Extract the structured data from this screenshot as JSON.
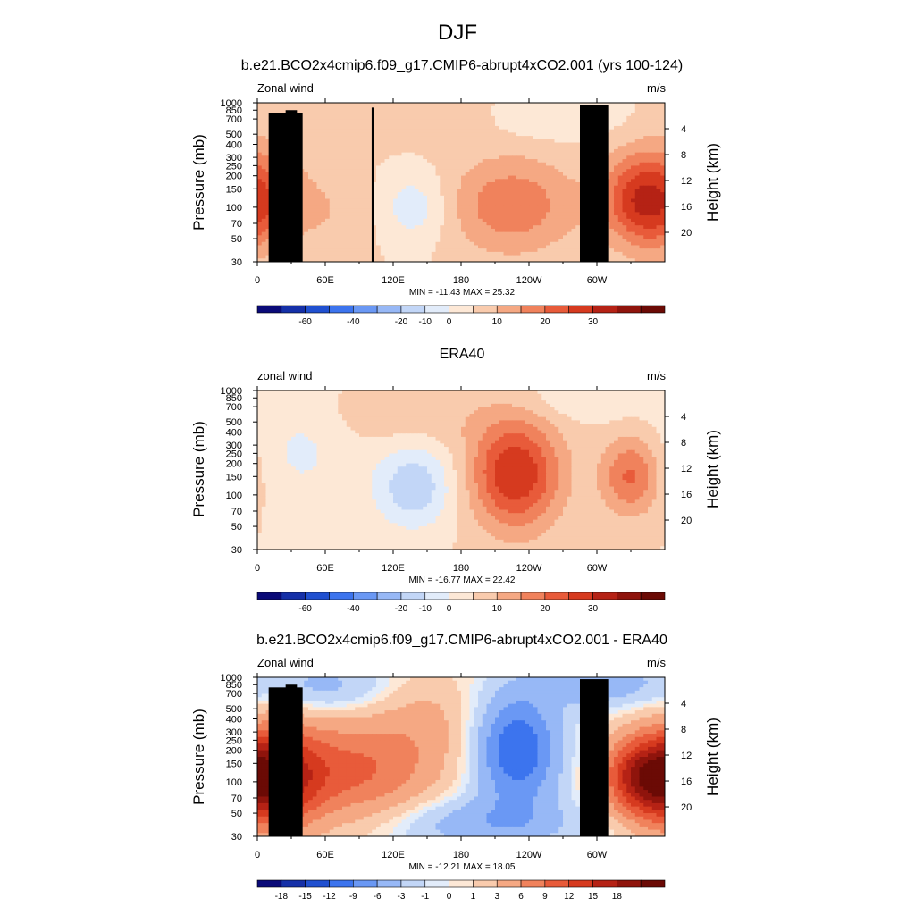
{
  "figure": {
    "title": "DJF"
  },
  "x_tick_labels": [
    "0",
    "60E",
    "120E",
    "180",
    "120W",
    "60W"
  ],
  "x_ticks_deg": [
    0,
    60,
    120,
    180,
    240,
    300
  ],
  "p_tick_labels": [
    "30",
    "50",
    "70",
    "100",
    "150",
    "200",
    "250",
    "300",
    "400",
    "500",
    "700",
    "850",
    "1000"
  ],
  "p_ticks": [
    30,
    50,
    70,
    100,
    150,
    200,
    250,
    300,
    400,
    500,
    700,
    850,
    1000
  ],
  "z_tick_labels": [
    "20",
    "16",
    "12",
    "8",
    "4"
  ],
  "z_ticks_km": [
    20,
    16,
    12,
    8,
    4
  ],
  "axis_labels": {
    "left": "Pressure (mb)",
    "right": "Height (km)"
  },
  "colorbars": {
    "abs": {
      "colors": [
        "#0a0a78",
        "#1530a8",
        "#2050d0",
        "#3c74ee",
        "#6a98f4",
        "#97b8f6",
        "#c2d6f7",
        "#e2ecfa",
        "#fde8d6",
        "#f9cbad",
        "#f5a883",
        "#f0825c",
        "#e85b3a",
        "#d63a1f",
        "#b52215",
        "#8f140c",
        "#6b0a05"
      ],
      "labels": [
        "-60",
        "-40",
        "-20",
        "-10",
        "0",
        "10",
        "20",
        "30"
      ],
      "label_after_index": [
        1,
        3,
        5,
        6,
        7,
        9,
        11,
        13
      ]
    },
    "diff": {
      "colors": [
        "#0a0a78",
        "#1530a8",
        "#2050d0",
        "#3c74ee",
        "#6a98f4",
        "#97b8f6",
        "#c2d6f7",
        "#e2ecfa",
        "#fde8d6",
        "#f9cbad",
        "#f5a883",
        "#f0825c",
        "#e85b3a",
        "#d63a1f",
        "#b52215",
        "#8f140c",
        "#6b0a05"
      ],
      "labels": [
        "-18",
        "-15",
        "-12",
        "-9",
        "-6",
        "-3",
        "-1",
        "0",
        "1",
        "3",
        "6",
        "9",
        "12",
        "15",
        "18"
      ],
      "label_after_index": [
        0,
        1,
        2,
        3,
        4,
        5,
        6,
        7,
        8,
        9,
        10,
        11,
        12,
        13,
        14
      ]
    }
  },
  "chart_data": [
    {
      "type": "heatmap",
      "title": "b.e21.BCO2x4cmip6.f09_g17.CMIP6-abrupt4xCO2.001 (yrs 100-124)",
      "left_label": "Zonal wind",
      "right_label": "m/s",
      "stats": "MIN = -11.43  MAX =  25.32",
      "xlabel": "",
      "ylabel": "Pressure (mb)",
      "y2label": "Height (km)",
      "x_range_deg": [
        0,
        360
      ],
      "p_range_mb": [
        1000,
        30
      ],
      "colorbar": "abs",
      "levels": [
        -70,
        -60,
        -50,
        -40,
        -30,
        -20,
        -15,
        -10,
        -5,
        0,
        5,
        10,
        15,
        20,
        25,
        30,
        35
      ],
      "min": -11.43,
      "max": 25.32,
      "features": [
        {
          "lon": 5,
          "p": 110,
          "amp": 13,
          "slon": 22,
          "sp": 0.9
        },
        {
          "lon": 50,
          "p": 95,
          "amp": 5,
          "slon": 40,
          "sp": 0.7
        },
        {
          "lon": 225,
          "p": 105,
          "amp": 14,
          "slon": 40,
          "sp": 0.75
        },
        {
          "lon": 335,
          "p": 120,
          "amp": 20,
          "slon": 22,
          "sp": 0.7
        },
        {
          "lon": 138,
          "p": 100,
          "amp": -9,
          "slon": 22,
          "sp": 0.55
        },
        {
          "lon": 20,
          "p": 40,
          "amp": -4,
          "slon": 18,
          "sp": 0.4
        },
        {
          "lon": 260,
          "p": 720,
          "amp": -5,
          "slon": 40,
          "sp": 0.35
        },
        {
          "lon": 130,
          "p": 750,
          "amp": 4,
          "slon": 60,
          "sp": 0.4
        }
      ],
      "topography": [
        [
          10,
          40,
          800
        ],
        [
          25,
          35,
          850
        ],
        [
          101,
          103,
          900
        ],
        [
          285,
          310,
          960
        ]
      ]
    },
    {
      "type": "heatmap",
      "title": "ERA40",
      "left_label": "zonal wind",
      "right_label": "m/s",
      "stats": "MIN = -16.77  MAX =  22.42",
      "xlabel": "",
      "ylabel": "Pressure (mb)",
      "y2label": "Height (km)",
      "x_range_deg": [
        0,
        360
      ],
      "p_range_mb": [
        1000,
        30
      ],
      "colorbar": "abs",
      "levels": [
        -70,
        -60,
        -50,
        -40,
        -30,
        -20,
        -15,
        -10,
        -5,
        0,
        5,
        10,
        15,
        20,
        25,
        30,
        35
      ],
      "min": -16.77,
      "max": 22.42,
      "features": [
        {
          "lon": 228,
          "p": 160,
          "amp": 25,
          "slon": 28,
          "sp": 0.85
        },
        {
          "lon": 330,
          "p": 150,
          "amp": 16,
          "slon": 18,
          "sp": 0.6
        },
        {
          "lon": 138,
          "p": 120,
          "amp": -14,
          "slon": 25,
          "sp": 0.65
        },
        {
          "lon": 40,
          "p": 300,
          "amp": -6,
          "slon": 30,
          "sp": 1.0
        },
        {
          "lon": 130,
          "p": 600,
          "amp": 4,
          "slon": 60,
          "sp": 0.5
        },
        {
          "lon": 290,
          "p": 800,
          "amp": -5,
          "slon": 40,
          "sp": 0.3
        }
      ],
      "topography": []
    },
    {
      "type": "heatmap",
      "title": "b.e21.BCO2x4cmip6.f09_g17.CMIP6-abrupt4xCO2.001 - ERA40",
      "left_label": "Zonal wind",
      "right_label": "m/s",
      "stats": "MIN = -12.21  MAX =  18.05",
      "xlabel": "",
      "ylabel": "Pressure (mb)",
      "y2label": "Height (km)",
      "x_range_deg": [
        0,
        360
      ],
      "p_range_mb": [
        1000,
        30
      ],
      "colorbar": "diff",
      "levels": [
        -21,
        -18,
        -15,
        -12,
        -9,
        -6,
        -3,
        -1,
        0,
        1,
        3,
        6,
        9,
        12,
        15,
        18,
        21
      ],
      "min": -12.21,
      "max": 18.05,
      "features": [
        {
          "lon": 15,
          "p": 110,
          "amp": 16,
          "slon": 30,
          "sp": 0.8
        },
        {
          "lon": 90,
          "p": 130,
          "amp": 9,
          "slon": 45,
          "sp": 0.8
        },
        {
          "lon": 230,
          "p": 200,
          "amp": -12,
          "slon": 25,
          "sp": 0.85
        },
        {
          "lon": 340,
          "p": 110,
          "amp": 14,
          "slon": 25,
          "sp": 0.6
        },
        {
          "lon": 150,
          "p": 400,
          "amp": 3,
          "slon": 30,
          "sp": 0.8
        },
        {
          "lon": 200,
          "p": 40,
          "amp": -5,
          "slon": 60,
          "sp": 0.4
        },
        {
          "lon": 60,
          "p": 800,
          "amp": -4,
          "slon": 40,
          "sp": 0.4
        },
        {
          "lon": 300,
          "p": 850,
          "amp": -5,
          "slon": 40,
          "sp": 0.35
        }
      ],
      "topography": [
        [
          10,
          40,
          800
        ],
        [
          25,
          35,
          850
        ],
        [
          285,
          310,
          960
        ]
      ]
    }
  ]
}
